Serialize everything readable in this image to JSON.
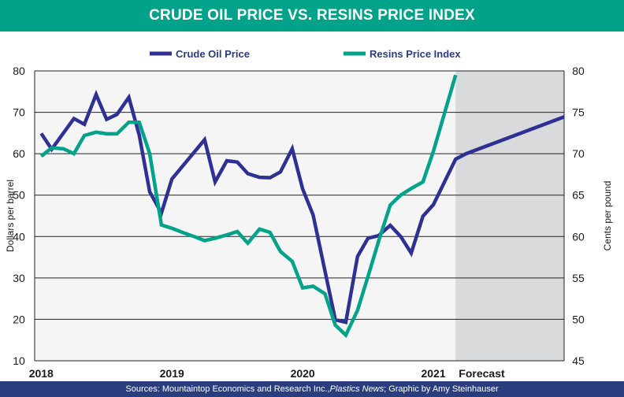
{
  "header": {
    "title": "CRUDE OIL PRICE VS. RESINS PRICE INDEX"
  },
  "footer": {
    "prefix": "Sources: Mountaintop Economics and Research Inc., ",
    "publication": "Plastics News",
    "suffix": "; Graphic by Amy Steinhauser"
  },
  "colors": {
    "header_bg": "#00a28a",
    "footer_bg": "#2a3d7c",
    "crude": "#2e3192",
    "resins": "#00a28a",
    "forecast_bg": "#d9dadc"
  },
  "chart_data": {
    "type": "line",
    "title": "CRUDE OIL PRICE VS. RESINS PRICE INDEX",
    "x_ticks": [
      {
        "label": "2018",
        "x": 2018.0
      },
      {
        "label": "2019",
        "x": 2019.0
      },
      {
        "label": "2020",
        "x": 2020.0
      },
      {
        "label": "2021",
        "x": 2021.0
      }
    ],
    "x_range": [
      2017.95,
      2022.0
    ],
    "forecast": {
      "label": "Forecast",
      "start": 2021.17
    },
    "left_axis": {
      "label": "Dollars per barrel",
      "range": [
        10,
        80
      ],
      "ticks": [
        10,
        20,
        30,
        40,
        50,
        60,
        70,
        80
      ]
    },
    "right_axis": {
      "label": "Cents per pound",
      "range": [
        45,
        80
      ],
      "ticks": [
        45,
        50,
        55,
        60,
        65,
        70,
        75,
        80
      ]
    },
    "grid": true,
    "legend_position": "top-center",
    "series": [
      {
        "name": "Crude Oil Price",
        "axis": "left",
        "x": [
          2018.0,
          2018.08,
          2018.25,
          2018.33,
          2018.42,
          2018.5,
          2018.58,
          2018.67,
          2018.75,
          2018.83,
          2018.92,
          2019.0,
          2019.25,
          2019.33,
          2019.42,
          2019.5,
          2019.58,
          2019.67,
          2019.75,
          2019.83,
          2019.92,
          2020.0,
          2020.08,
          2020.25,
          2020.33,
          2020.42,
          2020.5,
          2020.58,
          2020.67,
          2020.75,
          2020.83,
          2020.92,
          2021.0,
          2021.17,
          2021.25,
          2022.0
        ],
        "values": [
          64.9,
          61.1,
          68.5,
          67.1,
          74.3,
          68.3,
          69.5,
          73.6,
          64.5,
          50.8,
          45.7,
          53.9,
          63.4,
          53.2,
          58.3,
          58.0,
          55.2,
          54.3,
          54.2,
          55.6,
          61.2,
          51.5,
          45.2,
          19.9,
          19.3,
          35.2,
          39.6,
          40.2,
          42.7,
          40.0,
          36.0,
          44.9,
          47.7,
          58.7,
          60.0,
          68.9
        ]
      },
      {
        "name": "Resins Price Index",
        "axis": "right",
        "x": [
          2018.0,
          2018.08,
          2018.17,
          2018.25,
          2018.33,
          2018.42,
          2018.5,
          2018.58,
          2018.67,
          2018.75,
          2018.83,
          2018.92,
          2019.0,
          2019.08,
          2019.17,
          2019.25,
          2019.33,
          2019.42,
          2019.5,
          2019.58,
          2019.67,
          2019.75,
          2019.83,
          2019.92,
          2020.0,
          2020.08,
          2020.17,
          2020.25,
          2020.33,
          2020.42,
          2020.5,
          2020.58,
          2020.67,
          2020.75,
          2020.83,
          2020.92,
          2021.0,
          2021.17
        ],
        "values": [
          69.7,
          70.7,
          70.6,
          70.0,
          72.2,
          72.6,
          72.4,
          72.4,
          73.8,
          73.8,
          70.0,
          61.4,
          61.0,
          60.5,
          60.0,
          59.5,
          59.8,
          60.2,
          60.6,
          59.2,
          60.9,
          60.5,
          58.2,
          57.0,
          53.8,
          54.0,
          53.1,
          49.3,
          48.1,
          51.1,
          55.2,
          59.4,
          63.8,
          65.0,
          65.8,
          66.6,
          70.3,
          79.5
        ]
      }
    ]
  }
}
